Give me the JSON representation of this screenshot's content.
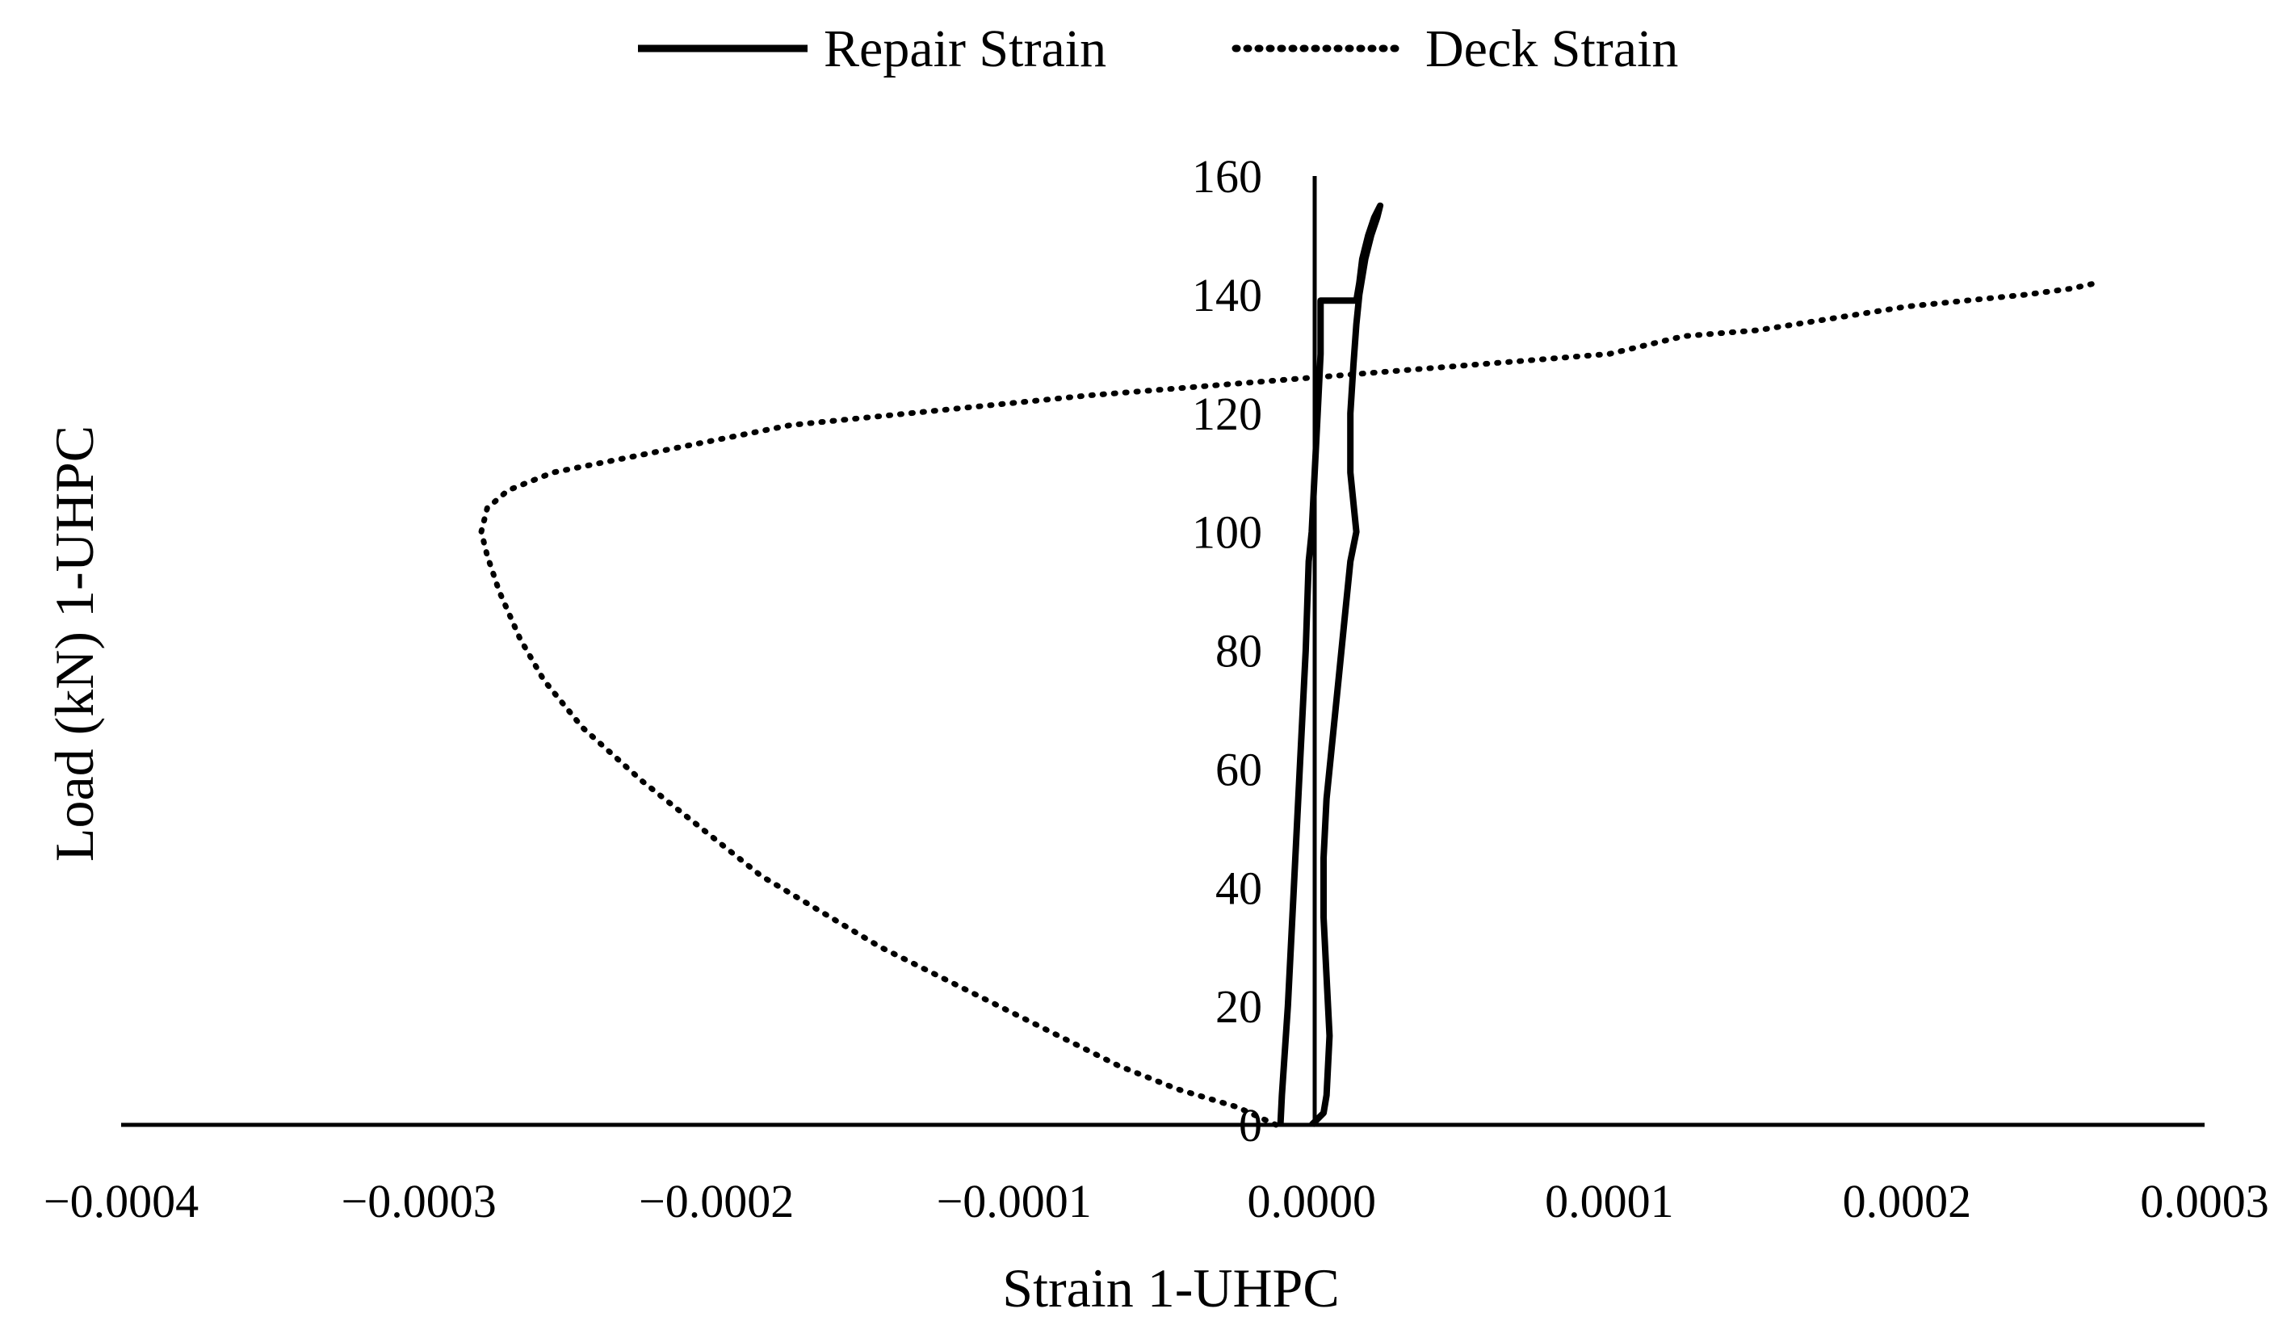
{
  "chart_data": {
    "type": "line",
    "title": "",
    "xlabel": "Strain 1-UHPC",
    "ylabel": "Load (kN) 1-UHPC",
    "xlim": [
      -0.0004,
      0.0003
    ],
    "ylim": [
      0,
      160
    ],
    "x_ticks": [
      "−0.0004",
      "−0.0003",
      "−0.0002",
      "−0.0001",
      "0.0000",
      "0.0001",
      "0.0002",
      "0.0003"
    ],
    "y_ticks": [
      "0",
      "20",
      "40",
      "60",
      "80",
      "100",
      "120",
      "140",
      "160"
    ],
    "grid": false,
    "legend_position": "top-center",
    "colors": {
      "line": "#000000",
      "background": "#ffffff"
    },
    "series": [
      {
        "name": "Repair Strain",
        "style": "solid",
        "points": [
          [
            -1.05e-05,
            0
          ],
          [
            -1e-05,
            5
          ],
          [
            -8e-06,
            20
          ],
          [
            -6e-06,
            40
          ],
          [
            -4e-06,
            60
          ],
          [
            -2e-06,
            80
          ],
          [
            -1e-06,
            95
          ],
          [
            0.0,
            100
          ],
          [
            1e-06,
            110
          ],
          [
            2e-06,
            120
          ],
          [
            3e-06,
            130
          ],
          [
            3e-06,
            139
          ],
          [
            1e-05,
            139
          ],
          [
            1.5e-05,
            139
          ],
          [
            1.6e-05,
            142
          ],
          [
            1.7e-05,
            146
          ],
          [
            1.9e-05,
            150
          ],
          [
            2.1e-05,
            153
          ],
          [
            2.3e-05,
            155
          ],
          [
            2.2e-05,
            153
          ],
          [
            2e-05,
            150
          ],
          [
            1.8e-05,
            146
          ],
          [
            1.6e-05,
            140
          ],
          [
            1.5e-05,
            135
          ],
          [
            1.4e-05,
            128
          ],
          [
            1.3e-05,
            120
          ],
          [
            1.3e-05,
            110
          ],
          [
            1.5e-05,
            100
          ],
          [
            1.3e-05,
            95
          ],
          [
            1.1e-05,
            85
          ],
          [
            9e-06,
            75
          ],
          [
            7e-06,
            65
          ],
          [
            5e-06,
            55
          ],
          [
            4e-06,
            45
          ],
          [
            4e-06,
            35
          ],
          [
            5e-06,
            25
          ],
          [
            6e-06,
            15
          ],
          [
            5e-06,
            5
          ],
          [
            4e-06,
            2
          ],
          [
            0.0,
            0
          ]
        ]
      },
      {
        "name": "Deck Strain",
        "style": "dotted",
        "points": [
          [
            -1.2e-05,
            0
          ],
          [
            -2.5e-05,
            3
          ],
          [
            -4.5e-05,
            6
          ],
          [
            -6.5e-05,
            10
          ],
          [
            -8.5e-05,
            15
          ],
          [
            -0.000105,
            20
          ],
          [
            -0.000125,
            25
          ],
          [
            -0.000145,
            30
          ],
          [
            -0.000165,
            36
          ],
          [
            -0.000185,
            42
          ],
          [
            -0.000205,
            50
          ],
          [
            -0.000225,
            58
          ],
          [
            -0.000245,
            67
          ],
          [
            -0.000258,
            75
          ],
          [
            -0.000266,
            82
          ],
          [
            -0.000273,
            90
          ],
          [
            -0.000277,
            96
          ],
          [
            -0.000279,
            100
          ],
          [
            -0.000277,
            104
          ],
          [
            -0.00027,
            107
          ],
          [
            -0.000255,
            110
          ],
          [
            -0.000235,
            112
          ],
          [
            -0.000215,
            114
          ],
          [
            -0.000195,
            116
          ],
          [
            -0.000175,
            118
          ],
          [
            -0.000155,
            119
          ],
          [
            -0.000135,
            120
          ],
          [
            -0.000115,
            121
          ],
          [
            -9.5e-05,
            122
          ],
          [
            -7.5e-05,
            123
          ],
          [
            -5e-05,
            124
          ],
          [
            -2.5e-05,
            125
          ],
          [
            0.0,
            126
          ],
          [
            2.5e-05,
            127
          ],
          [
            5e-05,
            128
          ],
          [
            7.5e-05,
            129
          ],
          [
            0.0001,
            130
          ],
          [
            0.000125,
            133
          ],
          [
            0.00015,
            134
          ],
          [
            0.000175,
            136
          ],
          [
            0.0002,
            138
          ],
          [
            0.00022,
            139
          ],
          [
            0.00024,
            140
          ],
          [
            0.000255,
            141
          ],
          [
            0.000264,
            142
          ]
        ]
      }
    ]
  }
}
